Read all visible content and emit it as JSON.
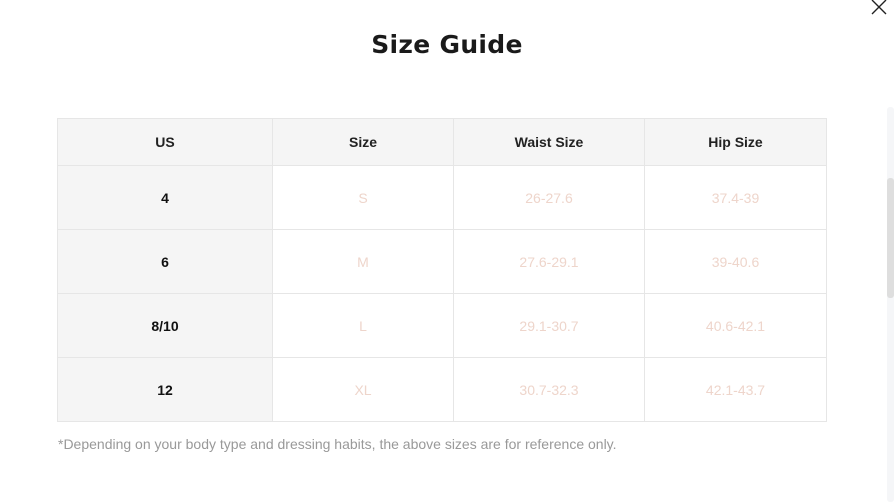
{
  "title": "Size Guide",
  "table": {
    "headers": [
      "US",
      "Size",
      "Waist Size",
      "Hip Size"
    ],
    "rows": [
      [
        "4",
        "S",
        "26-27.6",
        "37.4-39"
      ],
      [
        "6",
        "M",
        "27.6-29.1",
        "39-40.6"
      ],
      [
        "8/10",
        "L",
        "29.1-30.7",
        "40.6-42.1"
      ],
      [
        "12",
        "XL",
        "30.7-32.3",
        "42.1-43.7"
      ]
    ]
  },
  "note": "*Depending on your body type and dressing habits, the above sizes are for reference only.",
  "colors": {
    "value_text": "#eed5cb",
    "header_bg": "#f5f5f5"
  }
}
